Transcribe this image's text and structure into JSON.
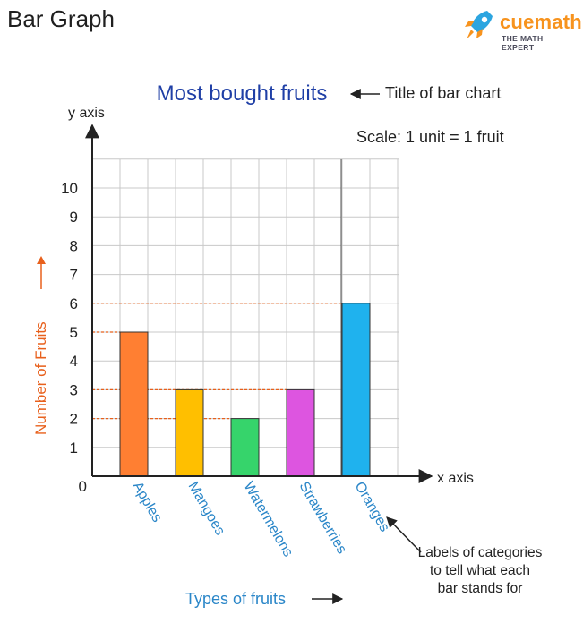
{
  "header": {
    "heading": "Bar Graph",
    "brand_name": "cuemath",
    "brand_tagline": "THE MATH EXPERT"
  },
  "annotations": {
    "title_note": "Title of bar chart",
    "scale": "Scale: 1 unit = 1 fruit",
    "y_axis_label": "y axis",
    "x_axis_label": "x axis",
    "categories_note": [
      "Labels of categories",
      "to tell what each",
      "bar stands for"
    ]
  },
  "colors": {
    "title": "#1f3fa6",
    "category_label": "#2a86c8",
    "axis_title": "#e8601c",
    "grid": "#c8c8c8",
    "axis": "#222222",
    "guide": "#e8601c"
  },
  "chart_data": {
    "type": "bar",
    "title": "Most bought fruits",
    "xlabel": "Types of fruits",
    "ylabel": "Number of Fruits",
    "categories": [
      "Apples",
      "Mangoes",
      "Watermelons",
      "Strawberries",
      "Oranges"
    ],
    "values": [
      5,
      3,
      2,
      3,
      6
    ],
    "bar_colors": [
      "#ff7f32",
      "#ffbf00",
      "#36d46b",
      "#dd55e0",
      "#1fb2ee"
    ],
    "ylim": [
      0,
      10
    ],
    "yticks": [
      0,
      1,
      2,
      3,
      4,
      5,
      6,
      7,
      8,
      9,
      10
    ],
    "grid": true
  }
}
